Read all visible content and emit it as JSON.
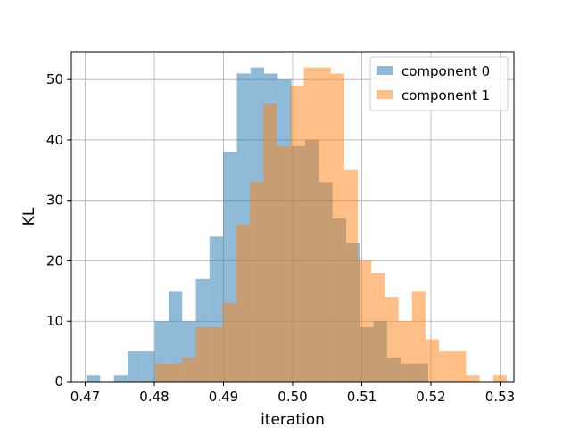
{
  "chart_data": {
    "type": "bar",
    "subtype": "histogram",
    "title": "",
    "xlabel": "iteration",
    "ylabel": "KL",
    "xlim": [
      0.468,
      0.532
    ],
    "ylim": [
      0,
      54.6
    ],
    "xticks": [
      0.47,
      0.48,
      0.49,
      0.5,
      0.51,
      0.52,
      0.53
    ],
    "xtick_labels": [
      "0.47",
      "0.48",
      "0.49",
      "0.50",
      "0.51",
      "0.52",
      "0.53"
    ],
    "yticks": [
      0,
      10,
      20,
      30,
      40,
      50
    ],
    "ytick_labels": [
      "0",
      "10",
      "20",
      "30",
      "40",
      "50"
    ],
    "grid": true,
    "legend_position": "top-right",
    "series": [
      {
        "name": "component 0",
        "color": "#1f77b4",
        "alpha": 0.5,
        "bin_start": 0.4702,
        "bin_width": 0.0019758,
        "counts": [
          1,
          0,
          1,
          5,
          5,
          10,
          15,
          10,
          17,
          24,
          38,
          51,
          52,
          51,
          50,
          39,
          40,
          33,
          27,
          23,
          9,
          10,
          4,
          3,
          3
        ]
      },
      {
        "name": "component 1",
        "color": "#ff7f0e",
        "alpha": 0.5,
        "bin_start": 0.4801,
        "bin_width": 0.001956,
        "counts": [
          3,
          3,
          4,
          9,
          9,
          13,
          26,
          33,
          46,
          39,
          49,
          52,
          52,
          51,
          35,
          20,
          18,
          14,
          10,
          15,
          7,
          5,
          5,
          1,
          0,
          1
        ]
      }
    ]
  }
}
